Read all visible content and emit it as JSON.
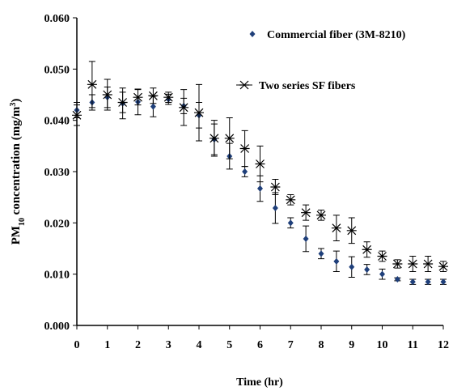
{
  "chart_data": {
    "type": "scatter",
    "xlabel": "Time (hr)",
    "ylabel_parts": [
      "PM",
      "10",
      " concentration (mg/m",
      "3",
      ")"
    ],
    "x": [
      0,
      0.5,
      1,
      1.5,
      2,
      2.5,
      3,
      3.5,
      4,
      4.5,
      5,
      5.5,
      6,
      6.5,
      7,
      7.5,
      8,
      8.5,
      9,
      9.5,
      10,
      10.5,
      11,
      11.5,
      12
    ],
    "series": [
      {
        "name": "Commercial fiber (3M-8210)",
        "color": "#1f3f7a",
        "marker": "diamond",
        "values": [
          0.042,
          0.0435,
          0.0445,
          0.0433,
          0.0436,
          0.0427,
          0.0441,
          0.0428,
          0.041,
          0.0363,
          0.033,
          0.03,
          0.0267,
          0.0229,
          0.02,
          0.0169,
          0.014,
          0.0125,
          0.0114,
          0.0109,
          0.01,
          0.009,
          0.0085,
          0.0085,
          0.0085
        ],
        "errors": [
          0.0015,
          0.0015,
          0.002,
          0.003,
          0.0025,
          0.002,
          0.001,
          0.0015,
          0.0025,
          0.003,
          0.0025,
          0.001,
          0.0025,
          0.003,
          0.001,
          0.0025,
          0.001,
          0.002,
          0.002,
          0.001,
          0.001,
          0.0003,
          0.0005,
          0.0005,
          0.0005
        ]
      },
      {
        "name": "Two series SF fibers",
        "color": "#000000",
        "marker": "asterisk",
        "values": [
          0.041,
          0.047,
          0.045,
          0.0435,
          0.0445,
          0.0448,
          0.0445,
          0.0425,
          0.0415,
          0.0365,
          0.0365,
          0.0345,
          0.0315,
          0.027,
          0.0245,
          0.022,
          0.0215,
          0.019,
          0.0185,
          0.0148,
          0.0135,
          0.012,
          0.012,
          0.012,
          0.0115
        ],
        "errors": [
          0.002,
          0.0045,
          0.003,
          0.002,
          0.0015,
          0.0015,
          0.001,
          0.0035,
          0.0055,
          0.0035,
          0.004,
          0.0035,
          0.0035,
          0.0015,
          0.001,
          0.0015,
          0.001,
          0.0025,
          0.0025,
          0.0015,
          0.001,
          0.0008,
          0.0015,
          0.0015,
          0.001
        ]
      }
    ],
    "xlim": [
      0,
      12
    ],
    "xticks": [
      0,
      1,
      2,
      3,
      4,
      5,
      6,
      7,
      8,
      9,
      10,
      11,
      12
    ],
    "ylim": [
      0,
      0.06
    ],
    "yticks": [
      {
        "value": 0,
        "label": "0.000"
      },
      {
        "value": 0.01,
        "label": "0.010"
      },
      {
        "value": 0.02,
        "label": "0.020"
      },
      {
        "value": 0.03,
        "label": "0.030"
      },
      {
        "value": 0.04,
        "label": "0.040"
      },
      {
        "value": 0.05,
        "label": "0.050"
      },
      {
        "value": 0.06,
        "label": "0.060"
      }
    ],
    "grid": false
  }
}
